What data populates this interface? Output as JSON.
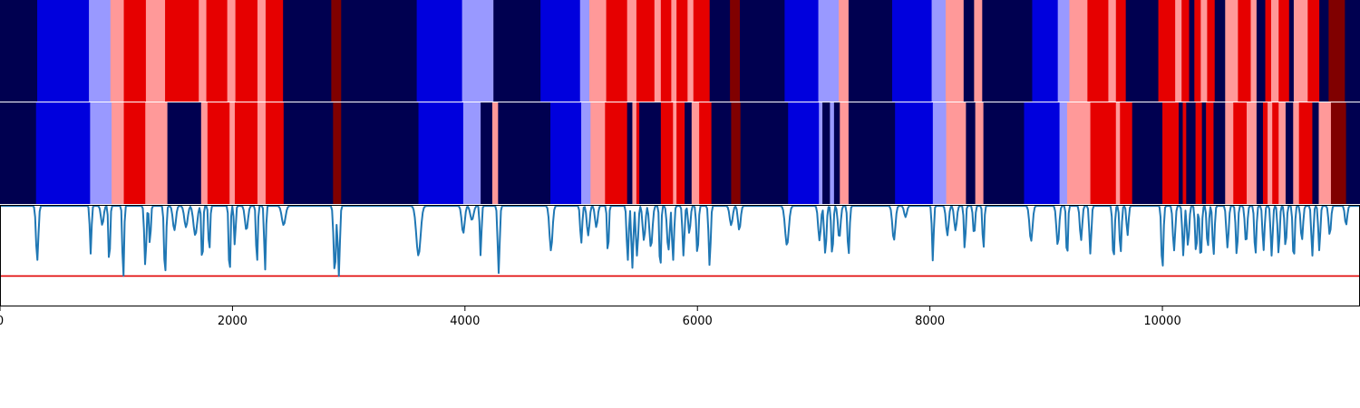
{
  "chart_data": {
    "type": "heatmap",
    "title": "",
    "xlabel": "",
    "ylabel": "",
    "xlim": [
      0,
      11700
    ],
    "x_ticks": [
      {
        "value": 0,
        "label": "0"
      },
      {
        "value": 2000,
        "label": "2000"
      },
      {
        "value": 4000,
        "label": "4000"
      },
      {
        "value": 6000,
        "label": "6000"
      },
      {
        "value": 8000,
        "label": "8000"
      },
      {
        "value": 10000,
        "label": "10000"
      }
    ],
    "colors": {
      "c0": "#000050",
      "c1": "#0000dd",
      "c2": "#9999ff",
      "c3": "#ff9999",
      "c4": "#e60000",
      "c5": "#800000",
      "line": "#1f77b4",
      "threshold": "#e00000"
    },
    "tracks": [
      {
        "segments": [
          [
            0,
            320,
            "c0"
          ],
          [
            320,
            765,
            "c1"
          ],
          [
            765,
            950,
            "c2"
          ],
          [
            950,
            1065,
            "c3"
          ],
          [
            1065,
            1255,
            "c4"
          ],
          [
            1255,
            1420,
            "c3"
          ],
          [
            1420,
            1710,
            "c4"
          ],
          [
            1710,
            1775,
            "c3"
          ],
          [
            1775,
            1955,
            "c4"
          ],
          [
            1955,
            2025,
            "c3"
          ],
          [
            2025,
            2215,
            "c4"
          ],
          [
            2215,
            2285,
            "c3"
          ],
          [
            2285,
            2435,
            "c4"
          ],
          [
            2435,
            2850,
            "c0"
          ],
          [
            2850,
            2935,
            "c5"
          ],
          [
            2935,
            3585,
            "c0"
          ],
          [
            3585,
            3975,
            "c1"
          ],
          [
            3975,
            4245,
            "c2"
          ],
          [
            4245,
            4650,
            "c0"
          ],
          [
            4650,
            4990,
            "c1"
          ],
          [
            4990,
            5070,
            "c2"
          ],
          [
            5070,
            5215,
            "c3"
          ],
          [
            5215,
            5395,
            "c4"
          ],
          [
            5395,
            5475,
            "c3"
          ],
          [
            5475,
            5630,
            "c4"
          ],
          [
            5630,
            5685,
            "c3"
          ],
          [
            5685,
            5775,
            "c4"
          ],
          [
            5775,
            5820,
            "c3"
          ],
          [
            5820,
            5915,
            "c4"
          ],
          [
            5915,
            5965,
            "c3"
          ],
          [
            5965,
            6105,
            "c4"
          ],
          [
            6105,
            6280,
            "c0"
          ],
          [
            6280,
            6365,
            "c5"
          ],
          [
            6365,
            6750,
            "c0"
          ],
          [
            6750,
            7040,
            "c1"
          ],
          [
            7040,
            7215,
            "c2"
          ],
          [
            7215,
            7300,
            "c3"
          ],
          [
            7300,
            7675,
            "c0"
          ],
          [
            7675,
            8015,
            "c1"
          ],
          [
            8015,
            8135,
            "c2"
          ],
          [
            8135,
            8290,
            "c3"
          ],
          [
            8290,
            8380,
            "c0"
          ],
          [
            8380,
            8450,
            "c3"
          ],
          [
            8450,
            8880,
            "c0"
          ],
          [
            8880,
            9100,
            "c1"
          ],
          [
            9100,
            9200,
            "c2"
          ],
          [
            9200,
            9355,
            "c3"
          ],
          [
            9355,
            9535,
            "c4"
          ],
          [
            9535,
            9600,
            "c3"
          ],
          [
            9600,
            9685,
            "c4"
          ],
          [
            9685,
            9965,
            "c0"
          ],
          [
            9965,
            10110,
            "c4"
          ],
          [
            10110,
            10165,
            "c3"
          ],
          [
            10165,
            10230,
            "c4"
          ],
          [
            10230,
            10275,
            "c0"
          ],
          [
            10275,
            10330,
            "c4"
          ],
          [
            10330,
            10385,
            "c3"
          ],
          [
            10385,
            10450,
            "c4"
          ],
          [
            10450,
            10540,
            "c0"
          ],
          [
            10540,
            10650,
            "c3"
          ],
          [
            10650,
            10760,
            "c4"
          ],
          [
            10760,
            10810,
            "c3"
          ],
          [
            10810,
            10885,
            "c0"
          ],
          [
            10885,
            10935,
            "c4"
          ],
          [
            10935,
            11000,
            "c3"
          ],
          [
            11000,
            11090,
            "c4"
          ],
          [
            11090,
            11130,
            "c0"
          ],
          [
            11130,
            11250,
            "c3"
          ],
          [
            11250,
            11350,
            "c4"
          ],
          [
            11350,
            11430,
            "c0"
          ],
          [
            11430,
            11570,
            "c5"
          ],
          [
            11570,
            11700,
            "c0"
          ]
        ]
      },
      {
        "segments": [
          [
            0,
            310,
            "c0"
          ],
          [
            310,
            775,
            "c1"
          ],
          [
            775,
            960,
            "c2"
          ],
          [
            960,
            1065,
            "c3"
          ],
          [
            1065,
            1250,
            "c4"
          ],
          [
            1250,
            1440,
            "c3"
          ],
          [
            1440,
            1730,
            "c0"
          ],
          [
            1730,
            1785,
            "c3"
          ],
          [
            1785,
            1975,
            "c4"
          ],
          [
            1975,
            2020,
            "c3"
          ],
          [
            2020,
            2215,
            "c4"
          ],
          [
            2215,
            2285,
            "c3"
          ],
          [
            2285,
            2440,
            "c4"
          ],
          [
            2440,
            2865,
            "c0"
          ],
          [
            2865,
            2935,
            "c5"
          ],
          [
            2935,
            3600,
            "c0"
          ],
          [
            3600,
            3985,
            "c1"
          ],
          [
            3985,
            4135,
            "c2"
          ],
          [
            4135,
            4235,
            "c0"
          ],
          [
            4235,
            4285,
            "c3"
          ],
          [
            4285,
            4735,
            "c0"
          ],
          [
            4735,
            5000,
            "c1"
          ],
          [
            5000,
            5080,
            "c2"
          ],
          [
            5080,
            5205,
            "c3"
          ],
          [
            5205,
            5395,
            "c4"
          ],
          [
            5395,
            5440,
            "c0"
          ],
          [
            5440,
            5475,
            "c3"
          ],
          [
            5475,
            5500,
            "c4"
          ],
          [
            5500,
            5685,
            "c0"
          ],
          [
            5685,
            5790,
            "c4"
          ],
          [
            5790,
            5820,
            "c3"
          ],
          [
            5820,
            5890,
            "c4"
          ],
          [
            5890,
            5950,
            "c0"
          ],
          [
            5950,
            6015,
            "c3"
          ],
          [
            6015,
            6120,
            "c4"
          ],
          [
            6120,
            6290,
            "c0"
          ],
          [
            6290,
            6370,
            "c5"
          ],
          [
            6370,
            6780,
            "c0"
          ],
          [
            6780,
            7045,
            "c1"
          ],
          [
            7045,
            7075,
            "c2"
          ],
          [
            7075,
            7140,
            "c0"
          ],
          [
            7140,
            7175,
            "c2"
          ],
          [
            7175,
            7225,
            "c0"
          ],
          [
            7225,
            7300,
            "c3"
          ],
          [
            7300,
            7700,
            "c0"
          ],
          [
            7700,
            8025,
            "c1"
          ],
          [
            8025,
            8140,
            "c2"
          ],
          [
            8140,
            8310,
            "c3"
          ],
          [
            8310,
            8390,
            "c0"
          ],
          [
            8390,
            8460,
            "c3"
          ],
          [
            8460,
            8810,
            "c0"
          ],
          [
            8810,
            9115,
            "c1"
          ],
          [
            9115,
            9180,
            "c2"
          ],
          [
            9180,
            9380,
            "c3"
          ],
          [
            9380,
            9600,
            "c4"
          ],
          [
            9600,
            9635,
            "c3"
          ],
          [
            9635,
            9740,
            "c4"
          ],
          [
            9740,
            10000,
            "c0"
          ],
          [
            10000,
            10140,
            "c4"
          ],
          [
            10140,
            10175,
            "c0"
          ],
          [
            10175,
            10205,
            "c4"
          ],
          [
            10205,
            10285,
            "c0"
          ],
          [
            10285,
            10340,
            "c4"
          ],
          [
            10340,
            10375,
            "c0"
          ],
          [
            10375,
            10440,
            "c4"
          ],
          [
            10440,
            10540,
            "c0"
          ],
          [
            10540,
            10610,
            "c3"
          ],
          [
            10610,
            10725,
            "c4"
          ],
          [
            10725,
            10810,
            "c3"
          ],
          [
            10810,
            10865,
            "c0"
          ],
          [
            10865,
            10905,
            "c4"
          ],
          [
            10905,
            10945,
            "c3"
          ],
          [
            10945,
            11000,
            "c4"
          ],
          [
            11000,
            11060,
            "c3"
          ],
          [
            11060,
            11125,
            "c0"
          ],
          [
            11125,
            11175,
            "c3"
          ],
          [
            11175,
            11290,
            "c4"
          ],
          [
            11290,
            11345,
            "c0"
          ],
          [
            11345,
            11450,
            "c3"
          ],
          [
            11450,
            11580,
            "c5"
          ],
          [
            11580,
            11700,
            "c0"
          ]
        ]
      }
    ],
    "threshold_level": 0.7,
    "line_baseline": 0.01,
    "line_dips": [
      [
        320,
        0.55,
        14
      ],
      [
        780,
        0.48,
        10
      ],
      [
        880,
        0.2,
        16
      ],
      [
        940,
        0.6,
        10
      ],
      [
        1060,
        0.75,
        10
      ],
      [
        1250,
        0.6,
        12
      ],
      [
        1290,
        0.4,
        10
      ],
      [
        1420,
        0.7,
        12
      ],
      [
        1500,
        0.25,
        18
      ],
      [
        1600,
        0.22,
        20
      ],
      [
        1680,
        0.3,
        22
      ],
      [
        1740,
        0.6,
        10
      ],
      [
        1800,
        0.48,
        10
      ],
      [
        1975,
        0.73,
        10
      ],
      [
        2020,
        0.4,
        10
      ],
      [
        2120,
        0.25,
        18
      ],
      [
        2210,
        0.6,
        10
      ],
      [
        2280,
        0.65,
        10
      ],
      [
        2440,
        0.2,
        22
      ],
      [
        2880,
        0.67,
        14
      ],
      [
        2915,
        0.7,
        12
      ],
      [
        3600,
        0.5,
        26
      ],
      [
        3985,
        0.28,
        18
      ],
      [
        4060,
        0.15,
        20
      ],
      [
        4135,
        0.5,
        10
      ],
      [
        4290,
        0.67,
        12
      ],
      [
        4740,
        0.45,
        18
      ],
      [
        5000,
        0.38,
        12
      ],
      [
        5060,
        0.3,
        16
      ],
      [
        5130,
        0.22,
        16
      ],
      [
        5230,
        0.5,
        10
      ],
      [
        5400,
        0.55,
        12
      ],
      [
        5440,
        0.62,
        12
      ],
      [
        5480,
        0.5,
        14
      ],
      [
        5540,
        0.35,
        16
      ],
      [
        5600,
        0.42,
        18
      ],
      [
        5680,
        0.68,
        10
      ],
      [
        5750,
        0.45,
        16
      ],
      [
        5790,
        0.55,
        12
      ],
      [
        5880,
        0.5,
        12
      ],
      [
        5930,
        0.28,
        14
      ],
      [
        6000,
        0.5,
        12
      ],
      [
        6105,
        0.6,
        12
      ],
      [
        6290,
        0.2,
        18
      ],
      [
        6360,
        0.25,
        16
      ],
      [
        6770,
        0.4,
        22
      ],
      [
        7050,
        0.35,
        16
      ],
      [
        7100,
        0.48,
        14
      ],
      [
        7160,
        0.5,
        12
      ],
      [
        7220,
        0.33,
        16
      ],
      [
        7300,
        0.5,
        12
      ],
      [
        7690,
        0.35,
        18
      ],
      [
        7790,
        0.12,
        16
      ],
      [
        8025,
        0.55,
        10
      ],
      [
        8150,
        0.3,
        16
      ],
      [
        8220,
        0.25,
        16
      ],
      [
        8300,
        0.45,
        10
      ],
      [
        8380,
        0.3,
        12
      ],
      [
        8460,
        0.45,
        10
      ],
      [
        8870,
        0.36,
        18
      ],
      [
        9100,
        0.4,
        16
      ],
      [
        9180,
        0.55,
        10
      ],
      [
        9300,
        0.35,
        14
      ],
      [
        9380,
        0.48,
        12
      ],
      [
        9580,
        0.55,
        12
      ],
      [
        9640,
        0.48,
        12
      ],
      [
        9700,
        0.3,
        12
      ],
      [
        10000,
        0.65,
        12
      ],
      [
        10100,
        0.45,
        14
      ],
      [
        10180,
        0.5,
        12
      ],
      [
        10220,
        0.4,
        14
      ],
      [
        10290,
        0.48,
        12
      ],
      [
        10330,
        0.55,
        12
      ],
      [
        10390,
        0.43,
        12
      ],
      [
        10440,
        0.5,
        12
      ],
      [
        10560,
        0.42,
        14
      ],
      [
        10640,
        0.5,
        12
      ],
      [
        10720,
        0.38,
        14
      ],
      [
        10800,
        0.5,
        12
      ],
      [
        10870,
        0.45,
        12
      ],
      [
        10940,
        0.5,
        12
      ],
      [
        11000,
        0.48,
        12
      ],
      [
        11060,
        0.42,
        12
      ],
      [
        11130,
        0.55,
        12
      ],
      [
        11200,
        0.35,
        14
      ],
      [
        11290,
        0.5,
        12
      ],
      [
        11350,
        0.45,
        12
      ],
      [
        11440,
        0.3,
        14
      ],
      [
        11580,
        0.2,
        14
      ]
    ]
  }
}
